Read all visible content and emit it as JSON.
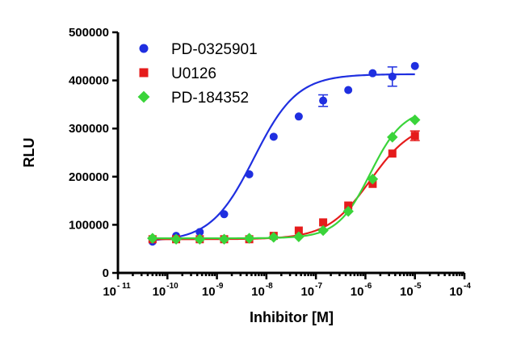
{
  "chart_data": {
    "type": "scatter",
    "xlabel": "Inhibitor [M]",
    "ylabel": "RLU",
    "xscale": "log",
    "xlim": [
      1e-11,
      0.0001
    ],
    "ylim": [
      0,
      500000
    ],
    "xticks": [
      {
        "base": "10",
        "exp": "- 11",
        "value": -11
      },
      {
        "base": "10",
        "exp": "-10",
        "value": -10
      },
      {
        "base": "10",
        "exp": "-9",
        "value": -9
      },
      {
        "base": "10",
        "exp": "-8",
        "value": -8
      },
      {
        "base": "10",
        "exp": "-7",
        "value": -7
      },
      {
        "base": "10",
        "exp": "-6",
        "value": -6
      },
      {
        "base": "10",
        "exp": "-5",
        "value": -5
      },
      {
        "base": "10",
        "exp": "-4",
        "value": -4
      }
    ],
    "yticks": [
      {
        "label": "0",
        "value": 0
      },
      {
        "label": "100000",
        "value": 100000
      },
      {
        "label": "200000",
        "value": 200000
      },
      {
        "label": "300000",
        "value": 300000
      },
      {
        "label": "400000",
        "value": 400000
      },
      {
        "label": "500000",
        "value": 500000
      }
    ],
    "legend_position": "top-left",
    "grid": false,
    "series": [
      {
        "name": "PD-0325901",
        "color": "#1f2fe0",
        "marker": "circle",
        "x": [
          5e-11,
          1.5e-10,
          4.5e-10,
          1.4e-09,
          4.5e-09,
          1.4e-08,
          4.5e-08,
          1.4e-07,
          4.5e-07,
          1.4e-06,
          3.5e-06,
          1e-05
        ],
        "y": [
          65000,
          77000,
          85000,
          122000,
          205000,
          283000,
          325000,
          358000,
          380000,
          415000,
          408000,
          430000
        ],
        "err": [
          0,
          0,
          0,
          0,
          0,
          0,
          0,
          12000,
          0,
          0,
          20000,
          0
        ],
        "fit": {
          "bottom": 65000,
          "top": 413000,
          "logEC50": -8.25,
          "hill": 1.0
        }
      },
      {
        "name": "U0126",
        "color": "#e51c1c",
        "marker": "square",
        "x": [
          5e-11,
          1.5e-10,
          4.5e-10,
          1.4e-09,
          4.5e-09,
          1.4e-08,
          4.5e-08,
          1.4e-07,
          4.5e-07,
          1.4e-06,
          3.5e-06,
          1e-05
        ],
        "y": [
          70000,
          70000,
          70000,
          70000,
          70000,
          77000,
          88000,
          105000,
          140000,
          185000,
          248000,
          285000
        ],
        "err": [
          0,
          0,
          0,
          0,
          0,
          0,
          0,
          0,
          0,
          0,
          0,
          10000
        ],
        "fit": {
          "bottom": 70000,
          "top": 315000,
          "logEC50": -5.9,
          "hill": 1.0
        }
      },
      {
        "name": "PD-184352",
        "color": "#3ad43a",
        "marker": "diamond",
        "x": [
          5e-11,
          1.5e-10,
          4.5e-10,
          1.4e-09,
          4.5e-09,
          1.4e-08,
          4.5e-08,
          1.4e-07,
          4.5e-07,
          1.4e-06,
          3.5e-06,
          1e-05
        ],
        "y": [
          72000,
          70000,
          70000,
          70000,
          72000,
          74000,
          75000,
          88000,
          128000,
          195000,
          282000,
          318000
        ],
        "err": [
          0,
          0,
          0,
          0,
          0,
          0,
          0,
          0,
          0,
          0,
          0,
          0
        ],
        "fit": {
          "bottom": 72000,
          "top": 342000,
          "logEC50": -5.9,
          "hill": 1.3
        }
      }
    ]
  }
}
